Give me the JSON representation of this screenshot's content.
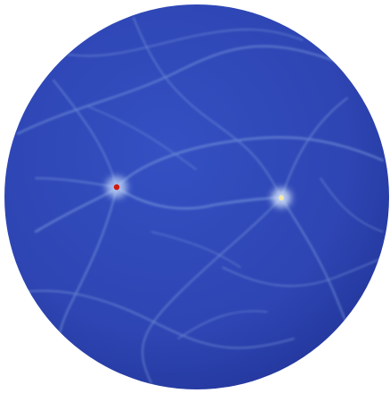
{
  "image": {
    "subject": "sphere",
    "background_color": "#ffffff",
    "sphere_base_color": "#2e45b3",
    "sphere_shadow_color": "#1c2f8e",
    "filament_color": "#8fb0e6",
    "hotspots": [
      {
        "color": "#d01a10",
        "glow_color": "#cfe3ff"
      },
      {
        "color": "#f4e9a8",
        "glow_color": "#dcecff"
      }
    ]
  }
}
